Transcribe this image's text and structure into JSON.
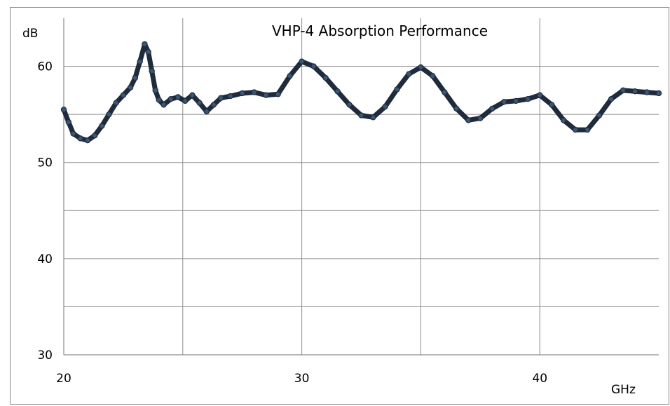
{
  "chart_data": {
    "type": "scatter",
    "title": "VHP-4  Absorption Performance",
    "xlabel": "GHz",
    "ylabel": "dB",
    "xlim": [
      20,
      45
    ],
    "ylim": [
      30,
      65
    ],
    "x_ticks": [
      20,
      30,
      40
    ],
    "y_ticks": [
      30,
      40,
      50,
      60
    ],
    "x_minor_grid": [
      25,
      35
    ],
    "y_minor_grid": [
      35,
      45,
      55
    ],
    "grid": true,
    "legend": "none",
    "marker_color": "#1f2b3a",
    "series": [
      {
        "x": [
          20.0,
          20.2,
          20.4,
          20.7,
          21.0,
          21.3,
          21.6,
          21.9,
          22.2,
          22.5,
          22.8,
          23.0,
          23.2,
          23.4,
          23.55,
          23.7,
          23.85,
          24.0,
          24.2,
          24.5,
          24.8,
          25.1,
          25.4,
          25.7,
          26.0,
          26.3,
          26.6,
          27.0,
          27.5,
          28.0,
          28.5,
          29.0,
          29.5,
          30.0,
          30.5,
          31.0,
          31.5,
          32.0,
          32.5,
          33.0,
          33.5,
          34.0,
          34.5,
          35.0,
          35.5,
          36.0,
          36.5,
          37.0,
          37.5,
          38.0,
          38.5,
          39.0,
          39.5,
          40.0,
          40.5,
          41.0,
          41.5,
          42.0,
          42.5,
          43.0,
          43.5,
          44.0,
          44.5,
          45.0
        ],
        "y": [
          55.5,
          54.2,
          53.0,
          52.5,
          52.3,
          52.8,
          53.8,
          55.0,
          56.2,
          57.0,
          57.8,
          58.8,
          60.5,
          62.3,
          61.5,
          59.5,
          57.5,
          56.5,
          56.0,
          56.6,
          56.8,
          56.4,
          57.0,
          56.2,
          55.3,
          56.0,
          56.7,
          56.9,
          57.2,
          57.3,
          57.0,
          57.1,
          59.0,
          60.5,
          60.0,
          58.8,
          57.4,
          56.0,
          54.9,
          54.7,
          55.8,
          57.6,
          59.2,
          59.9,
          59.0,
          57.3,
          55.6,
          54.4,
          54.6,
          55.6,
          56.3,
          56.4,
          56.6,
          57.0,
          56.0,
          54.4,
          53.4,
          53.4,
          54.9,
          56.6,
          57.5,
          57.4,
          57.3,
          57.2
        ]
      }
    ]
  }
}
